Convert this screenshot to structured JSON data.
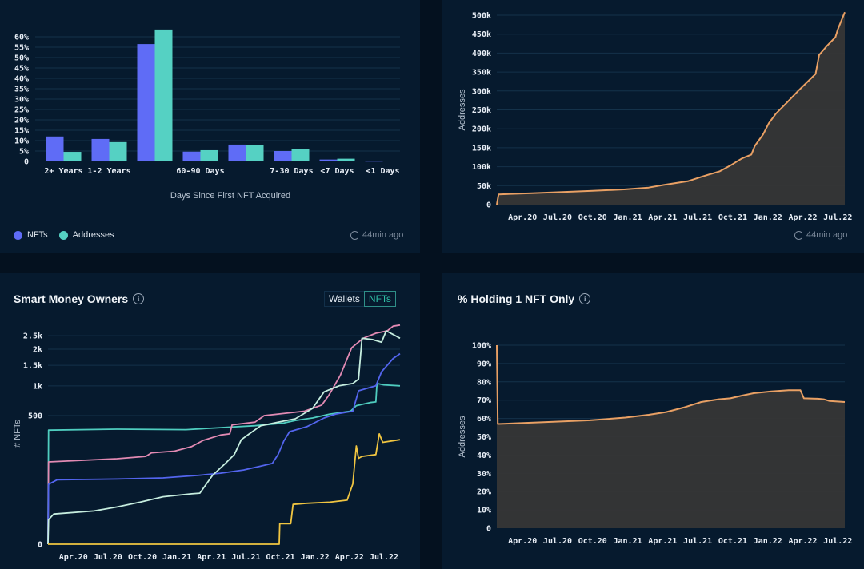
{
  "colors": {
    "nfts": "#5f6cf6",
    "addresses": "#55d1c3",
    "area_line": "#e9a064",
    "area_fill": "#363636",
    "smart_pink": "#e28ab3",
    "smart_mint": "#c6eedf",
    "smart_blue": "#5365ee",
    "smart_teal": "#4fcdbf",
    "smart_yellow": "#f0c541"
  },
  "panels": {
    "first_nft": {
      "updated": "44min ago",
      "legend": [
        {
          "label": "NFTs",
          "key": "nfts"
        },
        {
          "label": "Addresses",
          "key": "addresses"
        }
      ]
    },
    "addresses_growth": {
      "updated": "44min ago"
    },
    "smart_money": {
      "title": "Smart Money Owners",
      "toggle": {
        "wallets": "Wallets",
        "nfts": "NFTs",
        "active": "NFTs"
      }
    },
    "holding_one": {
      "title": "% Holding 1 NFT Only"
    }
  },
  "chart_data": [
    {
      "id": "first_nft",
      "type": "bar",
      "xlabel": "Days Since First NFT Acquired",
      "ylabel": "",
      "categories": [
        "2+ Years",
        "1-2 Years",
        "",
        "60-90 Days",
        "",
        "7-30 Days",
        "<7 Days",
        "<1 Days"
      ],
      "series": [
        {
          "name": "NFTs",
          "values": [
            12,
            10.8,
            56.5,
            4.7,
            8.1,
            5.0,
            0.9,
            0.1
          ]
        },
        {
          "name": "Addresses",
          "values": [
            4.6,
            9.3,
            63.5,
            5.4,
            7.7,
            6.1,
            1.3,
            0.3
          ]
        }
      ],
      "ylim": [
        0,
        60
      ],
      "yticks": [
        0,
        5,
        10,
        15,
        20,
        25,
        30,
        35,
        40,
        45,
        50,
        55,
        60
      ],
      "ytick_labels": [
        "0",
        "5%",
        "10%",
        "15%",
        "20%",
        "25%",
        "30%",
        "35%",
        "40%",
        "45%",
        "50%",
        "55%",
        "60%"
      ],
      "grid": true,
      "legend": "bottom-left"
    },
    {
      "id": "addresses_growth",
      "type": "area",
      "xlabel": "",
      "ylabel": "Addresses",
      "x_unit": "months since Feb 2020",
      "xlim": [
        0,
        29.8
      ],
      "xticks": [
        2,
        5,
        8,
        11,
        14,
        17,
        20,
        23,
        26,
        29
      ],
      "xtick_labels": [
        "Apr.20",
        "Jul.20",
        "Oct.20",
        "Jan.21",
        "Apr.21",
        "Jul.21",
        "Oct.21",
        "Jan.22",
        "Apr.22",
        "Jul.22"
      ],
      "ylim": [
        0,
        500000
      ],
      "yticks": [
        0,
        50000,
        100000,
        150000,
        200000,
        250000,
        300000,
        350000,
        400000,
        450000,
        500000
      ],
      "ytick_labels": [
        "0",
        "50k",
        "100k",
        "150k",
        "200k",
        "250k",
        "300k",
        "350k",
        "400k",
        "450k",
        "500k"
      ],
      "points": [
        [
          0,
          0
        ],
        [
          0.15,
          27000
        ],
        [
          3,
          30000
        ],
        [
          5.4,
          33000
        ],
        [
          8,
          36000
        ],
        [
          10.9,
          40000
        ],
        [
          13,
          45000
        ],
        [
          14.3,
          52000
        ],
        [
          16.4,
          62000
        ],
        [
          17.7,
          75000
        ],
        [
          19.1,
          88000
        ],
        [
          20.1,
          105000
        ],
        [
          21,
          122000
        ],
        [
          21.8,
          132000
        ],
        [
          22.1,
          155000
        ],
        [
          22.8,
          185000
        ],
        [
          23.3,
          215000
        ],
        [
          23.9,
          240000
        ],
        [
          24.8,
          268000
        ],
        [
          25.8,
          300000
        ],
        [
          26.8,
          330000
        ],
        [
          27.3,
          345000
        ],
        [
          27.6,
          395000
        ],
        [
          28.3,
          420000
        ],
        [
          29,
          442000
        ],
        [
          29.2,
          462000
        ],
        [
          29.8,
          508000
        ]
      ],
      "grid": true
    },
    {
      "id": "smart_money",
      "type": "line",
      "xlabel": "",
      "ylabel": "# NFTs",
      "y_scale": "power 0.3",
      "x_unit": "months since Feb 2020",
      "xlim": [
        0,
        30.6
      ],
      "xticks": [
        2,
        5,
        8,
        11,
        14,
        17,
        20,
        23,
        26,
        29
      ],
      "xtick_labels": [
        "Apr.20",
        "Jul.20",
        "Oct.20",
        "Jan.21",
        "Apr.21",
        "Jul.21",
        "Oct.21",
        "Jan.22",
        "Apr.22",
        "Jul.22"
      ],
      "ylim": [
        0,
        2950
      ],
      "yticks": [
        0,
        500,
        1000,
        1500,
        2000,
        2500
      ],
      "ytick_labels": [
        "0",
        "500",
        "1k",
        "1.5k",
        "2k",
        "2.5k"
      ],
      "series": [
        {
          "name": "teal",
          "color_key": "smart_teal",
          "points": [
            [
              0,
              0
            ],
            [
              0.05,
              335
            ],
            [
              6,
              345
            ],
            [
              12,
              340
            ],
            [
              15,
              360
            ],
            [
              18,
              380
            ],
            [
              20.5,
              410
            ],
            [
              21.5,
              440
            ],
            [
              23,
              470
            ],
            [
              24.5,
              520
            ],
            [
              26.3,
              560
            ],
            [
              26.8,
              640
            ],
            [
              28,
              690
            ],
            [
              28.5,
              700
            ],
            [
              28.6,
              1050
            ],
            [
              29.2,
              1020
            ],
            [
              30.6,
              1000
            ]
          ]
        },
        {
          "name": "pink",
          "color_key": "smart_pink",
          "points": [
            [
              0,
              0
            ],
            [
              0.05,
              113
            ],
            [
              6,
              128
            ],
            [
              8.5,
              140
            ],
            [
              9,
              160
            ],
            [
              11,
              170
            ],
            [
              12.5,
              200
            ],
            [
              13.5,
              245
            ],
            [
              15,
              290
            ],
            [
              15.8,
              300
            ],
            [
              16,
              390
            ],
            [
              18,
              420
            ],
            [
              18.8,
              500
            ],
            [
              22.3,
              560
            ],
            [
              23.8,
              650
            ],
            [
              24.4,
              810
            ],
            [
              25.4,
              1230
            ],
            [
              26.4,
              2050
            ],
            [
              27.4,
              2400
            ],
            [
              28.5,
              2600
            ],
            [
              29.5,
              2700
            ],
            [
              30,
              2900
            ],
            [
              30.6,
              2950
            ]
          ]
        },
        {
          "name": "blue",
          "color_key": "smart_blue",
          "points": [
            [
              0,
              0
            ],
            [
              0.05,
              39
            ],
            [
              0.8,
              50
            ],
            [
              6,
              52
            ],
            [
              10,
              55
            ],
            [
              13,
              62
            ],
            [
              15,
              69
            ],
            [
              17,
              80
            ],
            [
              18.5,
              95
            ],
            [
              19.5,
              106
            ],
            [
              20,
              150
            ],
            [
              20.5,
              240
            ],
            [
              21,
              321
            ],
            [
              22.5,
              370
            ],
            [
              24,
              470
            ],
            [
              25,
              520
            ],
            [
              26.5,
              560
            ],
            [
              27,
              900
            ],
            [
              28.5,
              1000
            ],
            [
              29,
              1330
            ],
            [
              30,
              1700
            ],
            [
              30.6,
              1850
            ]
          ]
        },
        {
          "name": "mint",
          "color_key": "smart_mint",
          "points": [
            [
              0,
              0
            ],
            [
              0.05,
              2
            ],
            [
              0.5,
              4
            ],
            [
              4,
              5.5
            ],
            [
              6,
              8
            ],
            [
              8,
              12
            ],
            [
              10,
              18
            ],
            [
              12.5,
              22
            ],
            [
              13.2,
              23
            ],
            [
              14.3,
              62
            ],
            [
              15.5,
              110
            ],
            [
              16.2,
              150
            ],
            [
              16.8,
              250
            ],
            [
              17.5,
              300
            ],
            [
              18.5,
              380
            ],
            [
              20,
              420
            ],
            [
              21.5,
              460
            ],
            [
              23,
              600
            ],
            [
              24,
              880
            ],
            [
              25.3,
              1000
            ],
            [
              26.5,
              1050
            ],
            [
              27,
              1150
            ],
            [
              27.3,
              2400
            ],
            [
              28.2,
              2350
            ],
            [
              29,
              2250
            ],
            [
              29.4,
              2700
            ],
            [
              30,
              2550
            ],
            [
              30.6,
              2400
            ]
          ]
        },
        {
          "name": "yellow",
          "color_key": "smart_yellow",
          "points": [
            [
              0,
              0
            ],
            [
              20.1,
              0
            ],
            [
              20.15,
              1.1
            ],
            [
              21.1,
              1.1
            ],
            [
              21.3,
              10
            ],
            [
              22.5,
              11
            ],
            [
              24.5,
              12
            ],
            [
              26,
              14
            ],
            [
              26.5,
              40
            ],
            [
              26.8,
              204
            ],
            [
              27,
              130
            ],
            [
              27.3,
              140
            ],
            [
              28.5,
              150
            ],
            [
              28.8,
              300
            ],
            [
              29.1,
              230
            ],
            [
              30.6,
              250
            ]
          ]
        }
      ],
      "grid": true
    },
    {
      "id": "holding_one",
      "type": "area",
      "xlabel": "",
      "ylabel": "Addresses",
      "x_unit": "months since Feb 2020",
      "xlim": [
        0,
        29.8
      ],
      "xticks": [
        2,
        5,
        8,
        11,
        14,
        17,
        20,
        23,
        26,
        29
      ],
      "xtick_labels": [
        "Apr.20",
        "Jul.20",
        "Oct.20",
        "Jan.21",
        "Apr.21",
        "Jul.21",
        "Oct.21",
        "Jan.22",
        "Apr.22",
        "Jul.22"
      ],
      "ylim": [
        0,
        100
      ],
      "yticks": [
        0,
        10,
        20,
        30,
        40,
        50,
        60,
        70,
        80,
        90,
        100
      ],
      "ytick_labels": [
        "0",
        "10%",
        "20%",
        "30%",
        "40%",
        "50%",
        "60%",
        "70%",
        "80%",
        "90%",
        "100%"
      ],
      "points": [
        [
          0,
          100
        ],
        [
          0.08,
          57
        ],
        [
          4,
          58
        ],
        [
          8,
          59
        ],
        [
          11,
          60.5
        ],
        [
          13,
          62
        ],
        [
          14.5,
          63.5
        ],
        [
          16,
          66
        ],
        [
          17.5,
          69
        ],
        [
          19,
          70.5
        ],
        [
          20,
          71
        ],
        [
          21,
          72.5
        ],
        [
          22,
          73.8
        ],
        [
          23.5,
          74.8
        ],
        [
          25,
          75.4
        ],
        [
          26,
          75.4
        ],
        [
          26.3,
          71
        ],
        [
          27.5,
          70.8
        ],
        [
          28,
          70.5
        ],
        [
          28.5,
          69.5
        ],
        [
          29.8,
          69
        ]
      ],
      "grid": true
    }
  ]
}
